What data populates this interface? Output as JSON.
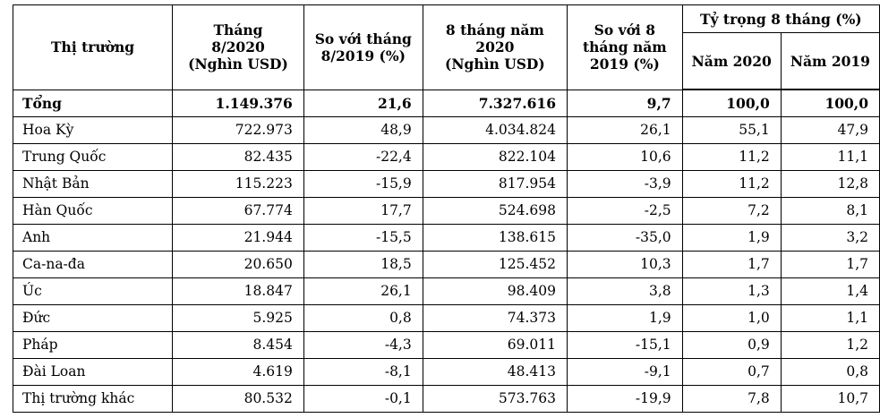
{
  "headers": {
    "market": "Thị trường",
    "aug2020": [
      "Tháng",
      "8/2020",
      "(Nghìn USD)"
    ],
    "vs_aug2019": [
      "So với tháng",
      "8/2019 (%)"
    ],
    "m8_2020": [
      "8 tháng năm",
      "2020",
      "(Nghìn USD)"
    ],
    "vs_m8_2019": [
      "So với 8",
      "tháng năm",
      "2019 (%)"
    ],
    "share_group": "Tỷ trọng 8 tháng (%)",
    "share_2020": "Năm 2020",
    "share_2019": "Năm 2019"
  },
  "rows": [
    {
      "market": "Tổng",
      "aug2020": "1.149.376",
      "vs_aug2019": "21,6",
      "m8_2020": "7.327.616",
      "vs_m8_2019": "9,7",
      "share_2020": "100,0",
      "share_2019": "100,0"
    },
    {
      "market": "Hoa Kỳ",
      "aug2020": "722.973",
      "vs_aug2019": "48,9",
      "m8_2020": "4.034.824",
      "vs_m8_2019": "26,1",
      "share_2020": "55,1",
      "share_2019": "47,9"
    },
    {
      "market": "Trung Quốc",
      "aug2020": "82.435",
      "vs_aug2019": "-22,4",
      "m8_2020": "822.104",
      "vs_m8_2019": "10,6",
      "share_2020": "11,2",
      "share_2019": "11,1"
    },
    {
      "market": "Nhật Bản",
      "aug2020": "115.223",
      "vs_aug2019": "-15,9",
      "m8_2020": "817.954",
      "vs_m8_2019": "-3,9",
      "share_2020": "11,2",
      "share_2019": "12,8"
    },
    {
      "market": "Hàn Quốc",
      "aug2020": "67.774",
      "vs_aug2019": "17,7",
      "m8_2020": "524.698",
      "vs_m8_2019": "-2,5",
      "share_2020": "7,2",
      "share_2019": "8,1"
    },
    {
      "market": "Anh",
      "aug2020": "21.944",
      "vs_aug2019": "-15,5",
      "m8_2020": "138.615",
      "vs_m8_2019": "-35,0",
      "share_2020": "1,9",
      "share_2019": "3,2"
    },
    {
      "market": "Ca-na-đa",
      "aug2020": "20.650",
      "vs_aug2019": "18,5",
      "m8_2020": "125.452",
      "vs_m8_2019": "10,3",
      "share_2020": "1,7",
      "share_2019": "1,7"
    },
    {
      "market": "Úc",
      "aug2020": "18.847",
      "vs_aug2019": "26,1",
      "m8_2020": "98.409",
      "vs_m8_2019": "3,8",
      "share_2020": "1,3",
      "share_2019": "1,4"
    },
    {
      "market": "Đức",
      "aug2020": "5.925",
      "vs_aug2019": "0,8",
      "m8_2020": "74.373",
      "vs_m8_2019": "1,9",
      "share_2020": "1,0",
      "share_2019": "1,1"
    },
    {
      "market": "Pháp",
      "aug2020": "8.454",
      "vs_aug2019": "-4,3",
      "m8_2020": "69.011",
      "vs_m8_2019": "-15,1",
      "share_2020": "0,9",
      "share_2019": "1,2"
    },
    {
      "market": "Đài Loan",
      "aug2020": "4.619",
      "vs_aug2019": "-8,1",
      "m8_2020": "48.413",
      "vs_m8_2019": "-9,1",
      "share_2020": "0,7",
      "share_2019": "0,8"
    },
    {
      "market": "Thị trường khác",
      "aug2020": "80.532",
      "vs_aug2019": "-0,1",
      "m8_2020": "573.763",
      "vs_m8_2019": "-19,9",
      "share_2020": "7,8",
      "share_2019": "10,7"
    }
  ]
}
